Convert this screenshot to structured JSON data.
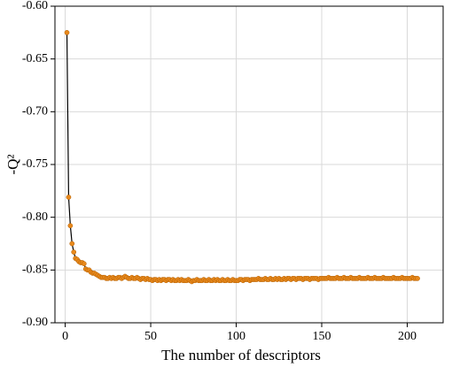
{
  "chart_data": {
    "type": "line",
    "x_label": "The number of descriptors",
    "y_label": "-Q²",
    "xlim": [
      -6,
      221
    ],
    "xticks": [
      0,
      50,
      100,
      150,
      200
    ],
    "ylim": [
      -0.9,
      -0.6
    ],
    "yticks": [
      {
        "value": -0.6,
        "label": "-0.60"
      },
      -0.65,
      {
        "value": -0.7,
        "label": "-0.70"
      },
      -0.75,
      {
        "value": -0.8,
        "label": "-0.80"
      },
      -0.85,
      {
        "value": -0.9,
        "label": "-0.90"
      }
    ],
    "grid": true,
    "series": [
      {
        "color": "#e8891c",
        "line_color": "#000000",
        "x": [
          1,
          2,
          3,
          4,
          5,
          6,
          7,
          8,
          9,
          10,
          11,
          12,
          13,
          14,
          15,
          16,
          17,
          18,
          19,
          20,
          21,
          22,
          23,
          24,
          25,
          26,
          27,
          28,
          29,
          30,
          31,
          32,
          33,
          34,
          35,
          36,
          37,
          38,
          39,
          40,
          41,
          42,
          43,
          44,
          45,
          46,
          47,
          48,
          49,
          50,
          51,
          52,
          53,
          54,
          55,
          56,
          57,
          58,
          59,
          60,
          61,
          62,
          63,
          64,
          65,
          66,
          67,
          68,
          69,
          70,
          71,
          72,
          73,
          74,
          75,
          76,
          77,
          78,
          79,
          80,
          81,
          82,
          83,
          84,
          85,
          86,
          87,
          88,
          89,
          90,
          91,
          92,
          93,
          94,
          95,
          96,
          97,
          98,
          99,
          100,
          101,
          102,
          103,
          104,
          105,
          106,
          107,
          108,
          109,
          110,
          111,
          112,
          113,
          114,
          115,
          116,
          117,
          118,
          119,
          120,
          121,
          122,
          123,
          124,
          125,
          126,
          127,
          128,
          129,
          130,
          131,
          132,
          133,
          134,
          135,
          136,
          137,
          138,
          139,
          140,
          141,
          142,
          143,
          144,
          145,
          146,
          147,
          148,
          149,
          150,
          151,
          152,
          153,
          154,
          155,
          156,
          157,
          158,
          159,
          160,
          161,
          162,
          163,
          164,
          165,
          166,
          167,
          168,
          169,
          170,
          171,
          172,
          173,
          174,
          175,
          176,
          177,
          178,
          179,
          180,
          181,
          182,
          183,
          184,
          185,
          186,
          187,
          188,
          189,
          190,
          191,
          192,
          193,
          194,
          195,
          196,
          197,
          198,
          199,
          200,
          201,
          202,
          203,
          204,
          205,
          206
        ],
        "values": [
          -0.625,
          -0.781,
          -0.808,
          -0.825,
          -0.833,
          -0.839,
          -0.84,
          -0.842,
          -0.843,
          -0.843,
          -0.844,
          -0.849,
          -0.85,
          -0.85,
          -0.852,
          -0.853,
          -0.853,
          -0.854,
          -0.855,
          -0.856,
          -0.857,
          -0.857,
          -0.857,
          -0.858,
          -0.858,
          -0.857,
          -0.858,
          -0.857,
          -0.858,
          -0.858,
          -0.857,
          -0.857,
          -0.858,
          -0.857,
          -0.856,
          -0.857,
          -0.858,
          -0.858,
          -0.857,
          -0.858,
          -0.858,
          -0.857,
          -0.858,
          -0.859,
          -0.858,
          -0.858,
          -0.859,
          -0.858,
          -0.859,
          -0.859,
          -0.86,
          -0.859,
          -0.859,
          -0.86,
          -0.859,
          -0.86,
          -0.859,
          -0.859,
          -0.86,
          -0.859,
          -0.859,
          -0.86,
          -0.859,
          -0.86,
          -0.86,
          -0.859,
          -0.86,
          -0.859,
          -0.86,
          -0.86,
          -0.86,
          -0.859,
          -0.86,
          -0.861,
          -0.86,
          -0.86,
          -0.859,
          -0.86,
          -0.86,
          -0.86,
          -0.859,
          -0.86,
          -0.86,
          -0.859,
          -0.86,
          -0.86,
          -0.859,
          -0.86,
          -0.859,
          -0.86,
          -0.86,
          -0.859,
          -0.86,
          -0.86,
          -0.859,
          -0.86,
          -0.86,
          -0.859,
          -0.86,
          -0.86,
          -0.86,
          -0.859,
          -0.859,
          -0.86,
          -0.859,
          -0.859,
          -0.859,
          -0.86,
          -0.859,
          -0.859,
          -0.859,
          -0.859,
          -0.858,
          -0.859,
          -0.859,
          -0.859,
          -0.858,
          -0.859,
          -0.859,
          -0.858,
          -0.859,
          -0.859,
          -0.858,
          -0.859,
          -0.858,
          -0.859,
          -0.859,
          -0.858,
          -0.859,
          -0.858,
          -0.858,
          -0.859,
          -0.858,
          -0.858,
          -0.859,
          -0.858,
          -0.858,
          -0.858,
          -0.859,
          -0.858,
          -0.858,
          -0.858,
          -0.859,
          -0.858,
          -0.858,
          -0.858,
          -0.858,
          -0.859,
          -0.858,
          -0.858,
          -0.858,
          -0.858,
          -0.858,
          -0.857,
          -0.858,
          -0.858,
          -0.858,
          -0.858,
          -0.857,
          -0.858,
          -0.858,
          -0.858,
          -0.857,
          -0.858,
          -0.858,
          -0.858,
          -0.857,
          -0.858,
          -0.858,
          -0.858,
          -0.858,
          -0.857,
          -0.858,
          -0.858,
          -0.858,
          -0.858,
          -0.857,
          -0.858,
          -0.858,
          -0.858,
          -0.857,
          -0.858,
          -0.858,
          -0.858,
          -0.858,
          -0.857,
          -0.858,
          -0.858,
          -0.858,
          -0.858,
          -0.858,
          -0.857,
          -0.858,
          -0.858,
          -0.858,
          -0.858,
          -0.857,
          -0.858,
          -0.858,
          -0.858,
          -0.858,
          -0.858,
          -0.857,
          -0.858,
          -0.858,
          -0.858
        ]
      }
    ]
  }
}
